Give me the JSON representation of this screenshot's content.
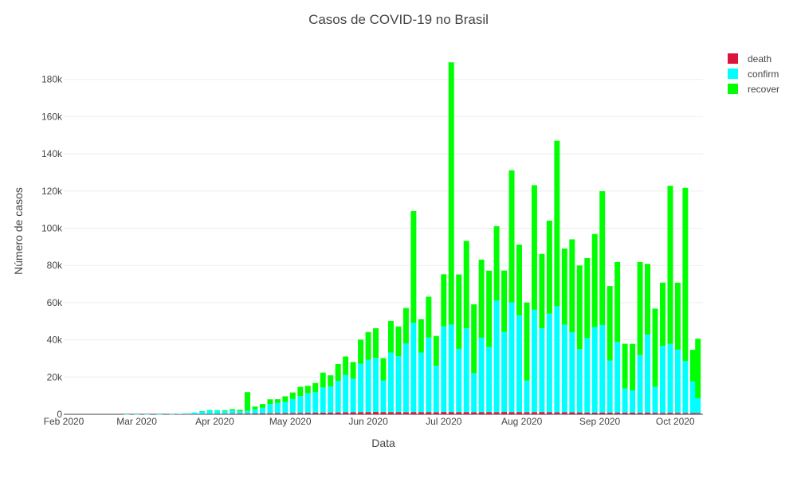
{
  "chart_data": {
    "type": "bar",
    "barmode": "stack",
    "title": "Casos de COVID-19 no Brasil",
    "xlabel": "Data",
    "ylabel": "Número de casos",
    "xlim": [
      "2020-02-01",
      "2020-10-12"
    ],
    "ylim": [
      0,
      197000
    ],
    "x_tick_labels": [
      "Feb 2020",
      "Mar 2020",
      "Apr 2020",
      "May 2020",
      "Jun 2020",
      "Jul 2020",
      "Aug 2020",
      "Sep 2020",
      "Oct 2020"
    ],
    "x_tick_dates": [
      "2020-02-01",
      "2020-03-01",
      "2020-04-01",
      "2020-05-01",
      "2020-06-01",
      "2020-07-01",
      "2020-08-01",
      "2020-09-01",
      "2020-10-01"
    ],
    "y_tick_labels": [
      "0",
      "20k",
      "40k",
      "60k",
      "80k",
      "100k",
      "120k",
      "140k",
      "160k",
      "180k"
    ],
    "y_tick_values": [
      0,
      20000,
      40000,
      60000,
      80000,
      100000,
      120000,
      140000,
      160000,
      180000
    ],
    "grid": true,
    "legend_position": "top-right",
    "dates": [
      "2020-02-26",
      "2020-03-01",
      "2020-03-05",
      "2020-03-10",
      "2020-03-15",
      "2020-03-18",
      "2020-03-21",
      "2020-03-24",
      "2020-03-27",
      "2020-03-30",
      "2020-04-02",
      "2020-04-05",
      "2020-04-08",
      "2020-04-11",
      "2020-04-14",
      "2020-04-17",
      "2020-04-20",
      "2020-04-23",
      "2020-04-26",
      "2020-04-29",
      "2020-05-02",
      "2020-05-05",
      "2020-05-08",
      "2020-05-11",
      "2020-05-14",
      "2020-05-17",
      "2020-05-20",
      "2020-05-23",
      "2020-05-26",
      "2020-05-29",
      "2020-06-01",
      "2020-06-04",
      "2020-06-07",
      "2020-06-10",
      "2020-06-13",
      "2020-06-16",
      "2020-06-19",
      "2020-06-22",
      "2020-06-25",
      "2020-06-28",
      "2020-07-01",
      "2020-07-04",
      "2020-07-07",
      "2020-07-10",
      "2020-07-13",
      "2020-07-16",
      "2020-07-19",
      "2020-07-22",
      "2020-07-25",
      "2020-07-28",
      "2020-07-31",
      "2020-08-03",
      "2020-08-06",
      "2020-08-09",
      "2020-08-12",
      "2020-08-15",
      "2020-08-18",
      "2020-08-21",
      "2020-08-24",
      "2020-08-27",
      "2020-08-30",
      "2020-09-02",
      "2020-09-05",
      "2020-09-08",
      "2020-09-11",
      "2020-09-14",
      "2020-09-17",
      "2020-09-20",
      "2020-09-23",
      "2020-09-26",
      "2020-09-29",
      "2020-10-02",
      "2020-10-05",
      "2020-10-08",
      "2020-10-10"
    ],
    "series": [
      {
        "name": "death",
        "color": "#dc143c",
        "values": [
          0,
          0,
          0,
          0,
          0,
          2,
          15,
          40,
          90,
          160,
          230,
          300,
          350,
          380,
          400,
          450,
          500,
          550,
          600,
          650,
          700,
          750,
          800,
          850,
          900,
          950,
          1000,
          1050,
          1100,
          1150,
          1200,
          1250,
          1200,
          1150,
          1200,
          1100,
          1200,
          1150,
          1200,
          1100,
          1250,
          1200,
          1150,
          1200,
          1100,
          1150,
          1200,
          1100,
          1250,
          1150,
          1200,
          1100,
          1150,
          1200,
          1100,
          1050,
          1100,
          1050,
          1000,
          950,
          900,
          950,
          900,
          850,
          900,
          850,
          800,
          850,
          800,
          750,
          800,
          750,
          700,
          650,
          600
        ]
      },
      {
        "name": "confirm",
        "color": "#00ffff",
        "values": [
          1,
          2,
          5,
          20,
          100,
          300,
          500,
          900,
          1500,
          2000,
          1800,
          1500,
          1800,
          1200,
          1500,
          2200,
          3000,
          5000,
          5500,
          6000,
          7500,
          9000,
          10500,
          11000,
          13500,
          14000,
          17000,
          20000,
          18000,
          26000,
          28000,
          29000,
          17000,
          32000,
          30000,
          37000,
          48000,
          32000,
          40000,
          25000,
          46000,
          47000,
          34000,
          45000,
          21000,
          40000,
          35000,
          60000,
          43000,
          59000,
          52000,
          17000,
          55000,
          45000,
          53000,
          57000,
          47000,
          43000,
          34000,
          40000,
          46000,
          47000,
          28000,
          38000,
          13000,
          12000,
          31000,
          42000,
          14000,
          36000,
          37000,
          34000,
          28000,
          17000,
          8000
        ]
      },
      {
        "name": "recover",
        "color": "#00ff00",
        "values": [
          0,
          0,
          0,
          0,
          0,
          0,
          0,
          0,
          50,
          100,
          200,
          400,
          600,
          800,
          10000,
          1500,
          2000,
          2500,
          2000,
          3000,
          3500,
          5000,
          4000,
          5000,
          8000,
          6000,
          9000,
          10000,
          9000,
          13000,
          15000,
          16000,
          12000,
          17000,
          16000,
          19000,
          60000,
          18000,
          22000,
          16000,
          28000,
          141000,
          40000,
          47000,
          37000,
          42000,
          41000,
          40000,
          33000,
          71000,
          38000,
          42000,
          67000,
          40000,
          50000,
          89000,
          41000,
          50000,
          45000,
          43000,
          50000,
          72000,
          40000,
          43000,
          24000,
          25000,
          50000,
          38000,
          42000,
          34000,
          85000,
          36000,
          93000,
          17000,
          32000
        ]
      }
    ]
  }
}
